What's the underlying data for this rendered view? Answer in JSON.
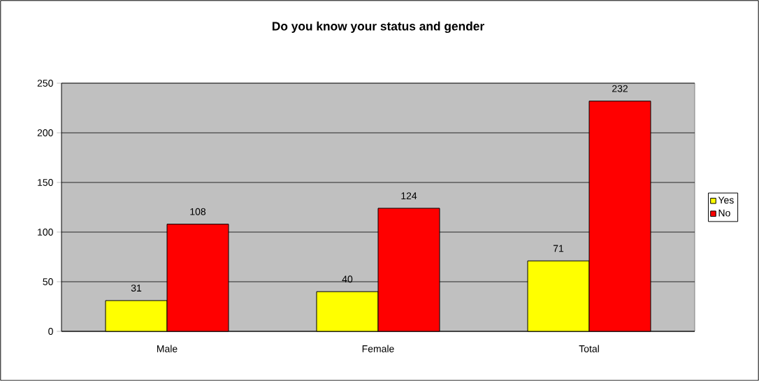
{
  "chart_data": {
    "type": "bar",
    "title": "Do you know your status and gender",
    "categories": [
      "Male",
      "Female",
      "Total"
    ],
    "series": [
      {
        "name": "Yes",
        "color": "#ffff00",
        "values": [
          31,
          40,
          71
        ]
      },
      {
        "name": "No",
        "color": "#ff0000",
        "values": [
          108,
          124,
          232
        ]
      }
    ],
    "ylim": [
      0,
      250
    ],
    "yticks": [
      0,
      50,
      100,
      150,
      200,
      250
    ],
    "grid": "y",
    "legend": "right",
    "data_labels": true
  }
}
